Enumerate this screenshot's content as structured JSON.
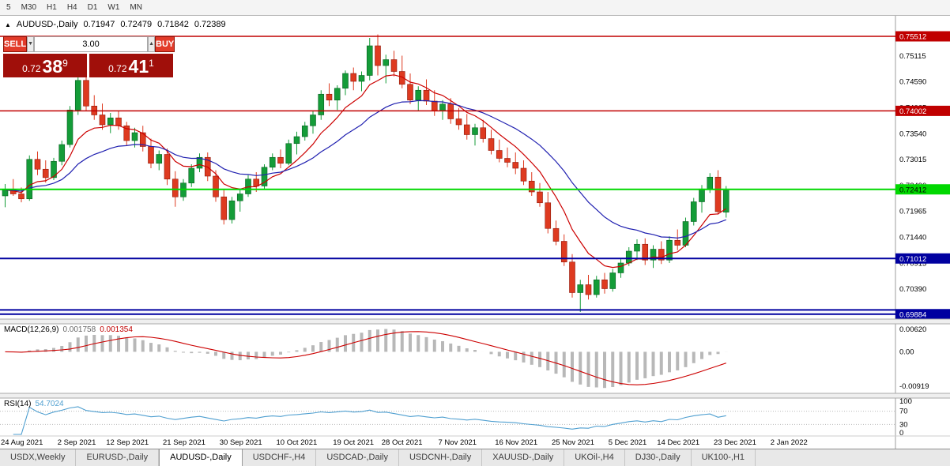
{
  "toolbar": {
    "periods": [
      "5",
      "M30",
      "H1",
      "H4",
      "D1",
      "W1",
      "MN"
    ]
  },
  "chart": {
    "title_arrow": "▲",
    "symbol_title": "AUDUSD-,Daily",
    "ohlc": {
      "open": "0.71947",
      "high": "0.72479",
      "low": "0.71842",
      "close": "0.72389"
    },
    "trade_panel": {
      "sell_label": "SELL",
      "buy_label": "BUY",
      "volume": "3.00",
      "down_icon": "▼",
      "up_icon": "▲",
      "sell_price_prefix": "0.72",
      "sell_price_big": "38",
      "sell_price_sup": "9",
      "buy_price_prefix": "0.72",
      "buy_price_big": "41",
      "buy_price_sup": "1"
    }
  },
  "chart_data": {
    "type": "candlestick",
    "symbol": "AUDUSD-",
    "timeframe": "Daily",
    "price_divisor": 10000,
    "candles": {
      "open": [
        7228,
        7240,
        7232,
        7222,
        7302,
        7282,
        7265,
        7298,
        7332,
        7402,
        7462,
        7410,
        7392,
        7372,
        7386,
        7370,
        7340,
        7356,
        7328,
        7294,
        7312,
        7262,
        7226,
        7254,
        7284,
        7306,
        7268,
        7226,
        7180,
        7218,
        7232,
        7262,
        7248,
        7286,
        7306,
        7294,
        7334,
        7348,
        7370,
        7392,
        7434,
        7422,
        7446,
        7476,
        7460,
        7472,
        7532,
        7492,
        7504,
        7480,
        7454,
        7422,
        7442,
        7420,
        7400,
        7414,
        7384,
        7372,
        7352,
        7366,
        7344,
        7320,
        7304,
        7296,
        7284,
        7258,
        7236,
        7214,
        7162,
        7136,
        7094,
        7032,
        7048,
        7028,
        7058,
        7040,
        7072,
        7092,
        7116,
        7130,
        7098,
        7120,
        7098,
        7138,
        7128,
        7176,
        7216,
        7242,
        7266,
        7195
      ],
      "high": [
        7252,
        7262,
        7245,
        7310,
        7318,
        7300,
        7305,
        7340,
        7410,
        7478,
        7468,
        7432,
        7415,
        7396,
        7400,
        7378,
        7366,
        7370,
        7344,
        7320,
        7324,
        7278,
        7262,
        7292,
        7314,
        7316,
        7280,
        7240,
        7226,
        7242,
        7270,
        7276,
        7292,
        7314,
        7322,
        7342,
        7358,
        7378,
        7400,
        7442,
        7456,
        7452,
        7482,
        7488,
        7480,
        7548,
        7555,
        7514,
        7522,
        7512,
        7476,
        7450,
        7464,
        7442,
        7422,
        7426,
        7406,
        7394,
        7374,
        7382,
        7362,
        7342,
        7326,
        7316,
        7300,
        7276,
        7254,
        7236,
        7178,
        7150,
        7110,
        7058,
        7068,
        7066,
        7072,
        7080,
        7100,
        7124,
        7140,
        7142,
        7128,
        7136,
        7146,
        7160,
        7184,
        7224,
        7250,
        7274,
        7280,
        7248
      ],
      "low": [
        7205,
        7228,
        7215,
        7218,
        7270,
        7255,
        7260,
        7290,
        7326,
        7392,
        7400,
        7382,
        7362,
        7355,
        7362,
        7330,
        7326,
        7318,
        7284,
        7280,
        7250,
        7206,
        7218,
        7246,
        7276,
        7258,
        7216,
        7170,
        7172,
        7196,
        7226,
        7236,
        7242,
        7280,
        7284,
        7290,
        7312,
        7340,
        7354,
        7382,
        7410,
        7402,
        7432,
        7442,
        7440,
        7462,
        7472,
        7456,
        7470,
        7446,
        7414,
        7400,
        7412,
        7390,
        7382,
        7374,
        7362,
        7342,
        7330,
        7336,
        7312,
        7296,
        7286,
        7272,
        7250,
        7228,
        7206,
        7152,
        7128,
        7086,
        7022,
        6993,
        7018,
        7022,
        7030,
        7034,
        7062,
        7086,
        7098,
        7088,
        7082,
        7090,
        7092,
        7118,
        7124,
        7168,
        7194,
        7234,
        7190,
        7184
      ],
      "close": [
        7240,
        7232,
        7222,
        7302,
        7282,
        7265,
        7298,
        7332,
        7402,
        7462,
        7410,
        7392,
        7372,
        7386,
        7370,
        7340,
        7356,
        7328,
        7294,
        7312,
        7262,
        7226,
        7254,
        7284,
        7306,
        7268,
        7226,
        7180,
        7218,
        7232,
        7262,
        7248,
        7286,
        7306,
        7294,
        7334,
        7348,
        7370,
        7392,
        7434,
        7422,
        7446,
        7476,
        7460,
        7472,
        7532,
        7492,
        7504,
        7480,
        7454,
        7422,
        7442,
        7420,
        7400,
        7414,
        7384,
        7372,
        7352,
        7366,
        7344,
        7320,
        7304,
        7296,
        7284,
        7258,
        7236,
        7214,
        7162,
        7136,
        7094,
        7032,
        7048,
        7028,
        7058,
        7040,
        7072,
        7092,
        7116,
        7130,
        7098,
        7120,
        7098,
        7138,
        7128,
        7176,
        7216,
        7242,
        7266,
        7196,
        7239
      ]
    },
    "x_labels": [
      {
        "text": "24 Aug 2021",
        "index": 0
      },
      {
        "text": "2 Sep 2021",
        "index": 7
      },
      {
        "text": "12 Sep 2021",
        "index": 13
      },
      {
        "text": "21 Sep 2021",
        "index": 20
      },
      {
        "text": "30 Sep 2021",
        "index": 27
      },
      {
        "text": "10 Oct 2021",
        "index": 34
      },
      {
        "text": "19 Oct 2021",
        "index": 41
      },
      {
        "text": "28 Oct 2021",
        "index": 47
      },
      {
        "text": "7 Nov 2021",
        "index": 54
      },
      {
        "text": "16 Nov 2021",
        "index": 61
      },
      {
        "text": "25 Nov 2021",
        "index": 68
      },
      {
        "text": "5 Dec 2021",
        "index": 75
      },
      {
        "text": "14 Dec 2021",
        "index": 81
      },
      {
        "text": "23 Dec 2021",
        "index": 88
      },
      {
        "text": "2 Jan 2022",
        "index": 95
      }
    ],
    "price_axis_labels": [
      "0.75560",
      "0.75115",
      "0.74590",
      "0.74065",
      "0.73540",
      "0.73015",
      "0.72490",
      "0.71965",
      "0.71440",
      "0.70915",
      "0.70390",
      "0.69865"
    ],
    "h_lines": [
      {
        "price": 0.75512,
        "label": "0.75512",
        "color": "#c00000",
        "text_color": "#ffffff",
        "width": 1.4
      },
      {
        "price": 0.74002,
        "label": "0.74002",
        "color": "#c00000",
        "text_color": "#ffffff",
        "width": 1.4
      },
      {
        "price": 0.72412,
        "label": "0.72412",
        "color": "#00d800",
        "text_color": "#000000",
        "width": 2
      },
      {
        "price": 0.71012,
        "label": "0.71012",
        "color": "#0000a0",
        "text_color": "#ffffff",
        "width": 2
      },
      {
        "price": 0.6997,
        "label": "",
        "color": "#0000a0",
        "text_color": "#ffffff",
        "width": 2
      },
      {
        "price": 0.69884,
        "label": "0.69884",
        "color": "#0000a0",
        "text_color": "#ffffff",
        "width": 2
      }
    ],
    "moving_averages": [
      {
        "period": 8,
        "color": "#cc0000"
      },
      {
        "period": 20,
        "color": "#2020b0"
      }
    ],
    "indicators": {
      "macd": {
        "name": "MACD(12,26,9)",
        "value_main": "0.001758",
        "value_signal": "0.001354",
        "fast": 12,
        "slow": 26,
        "signal": 9,
        "scale_max": 0.0062,
        "scale_max_text": "0.00620",
        "scale_zero_text": "0.00",
        "scale_min": -0.00919,
        "scale_min_text": "-0.00919",
        "bar_color": "#b8b8b8",
        "signal_color": "#cc0000"
      },
      "rsi": {
        "name": "RSI(14)",
        "value": "54.7024",
        "period": 14,
        "levels": [
          100,
          70,
          30,
          0
        ],
        "line_color": "#4f9fd0"
      }
    },
    "ylim": [
      0.696,
      0.757
    ],
    "grid": false,
    "up_color": "#149c38",
    "down_color": "#de3a20"
  },
  "tabs": [
    {
      "label": "USDX,Weekly",
      "active": false
    },
    {
      "label": "EURUSD-,Daily",
      "active": false
    },
    {
      "label": "AUDUSD-,Daily",
      "active": true
    },
    {
      "label": "USDCHF-,H4",
      "active": false
    },
    {
      "label": "USDCAD-,Daily",
      "active": false
    },
    {
      "label": "USDCNH-,Daily",
      "active": false
    },
    {
      "label": "XAUUSD-,Daily",
      "active": false
    },
    {
      "label": "UKOil-,H4",
      "active": false
    },
    {
      "label": "DJ30-,Daily",
      "active": false
    },
    {
      "label": "UK100-,H1",
      "active": false
    }
  ]
}
